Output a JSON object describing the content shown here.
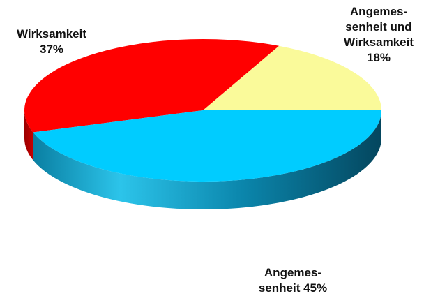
{
  "chart_data": {
    "type": "pie",
    "style": "3d",
    "slices": [
      {
        "label_lines": [
          "Angemes-",
          "senheit und",
          "Wirksamkeit"
        ],
        "percent_label": "18%",
        "value": 18,
        "color": "#FAFA9A"
      },
      {
        "label_lines": [
          "Wirksamkeit"
        ],
        "percent_label": "37%",
        "value": 37,
        "color": "#FF0000"
      },
      {
        "label_lines": [
          "Angemes-",
          "senheit 45%"
        ],
        "percent_label": "",
        "value": 45,
        "color": "#00CCFF"
      }
    ]
  }
}
